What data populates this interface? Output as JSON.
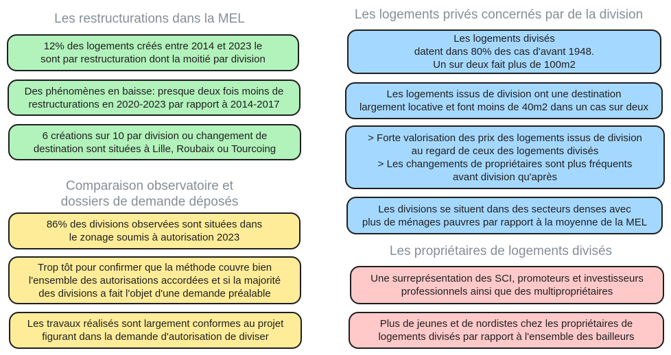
{
  "colors": {
    "green": "#b2f2bb",
    "yellow": "#ffec99",
    "blue": "#a5d8ff",
    "pink": "#ffc9c9",
    "border": "#1e1e1e",
    "title": "#868e96"
  },
  "left": {
    "section1": {
      "title": "Les restructurations dans la MEL",
      "boxes": [
        "12% des logements créés entre 2014 et 2023 le\nsont par restructuration dont la moitié par division",
        "Des phénomènes en baisse: presque deux fois moins de\nrestructurations en 2020-2023 par rapport à 2014-2017",
        "6 créations sur 10 par division ou changement de\ndestination sont situées à Lille, Roubaix ou Tourcoing"
      ]
    },
    "section2": {
      "title": "Comparaison observatoire et\ndossiers de demande déposés",
      "boxes": [
        "86% des divisions observées sont situées dans\nle zonage soumis à autorisation 2023",
        "Trop tôt pour confirmer que la méthode couvre bien\nl'ensemble des autorisations accordées et si la majorité\ndes divisions a fait l'objet d'une demande préalable",
        "Les travaux réalisés sont largement conformes au projet\nfigurant dans la demande d'autorisation de diviser"
      ]
    }
  },
  "right": {
    "section3": {
      "title": "Les logements privés concernés par de la division",
      "boxes": [
        "Les logements divisés\ndatent dans 80% des cas d'avant 1948.\nUn sur deux fait plus de 100m2",
        "Les logements issus de division ont une destination\nlargement locative et font moins de 40m2 dans un cas sur deux",
        "> Forte valorisation des prix des logements issus de division\nau regard de ceux des logements divisés\n> Les changements de propriétaires sont plus fréquents\navant division qu'après",
        "Les divisions se situent dans des secteurs denses avec\nplus de ménages pauvres par rapport à la moyenne de la MEL"
      ]
    },
    "section4": {
      "title": "Les propriétaires de logements divisés",
      "boxes": [
        "Une surreprésentation des SCI, promoteurs et investisseurs\nprofessionnels ainsi que des multipropriétaires",
        "Plus de jeunes et de nordistes chez les propriétaires de\nlogements divisés par rapport à l'ensemble des bailleurs"
      ]
    }
  }
}
